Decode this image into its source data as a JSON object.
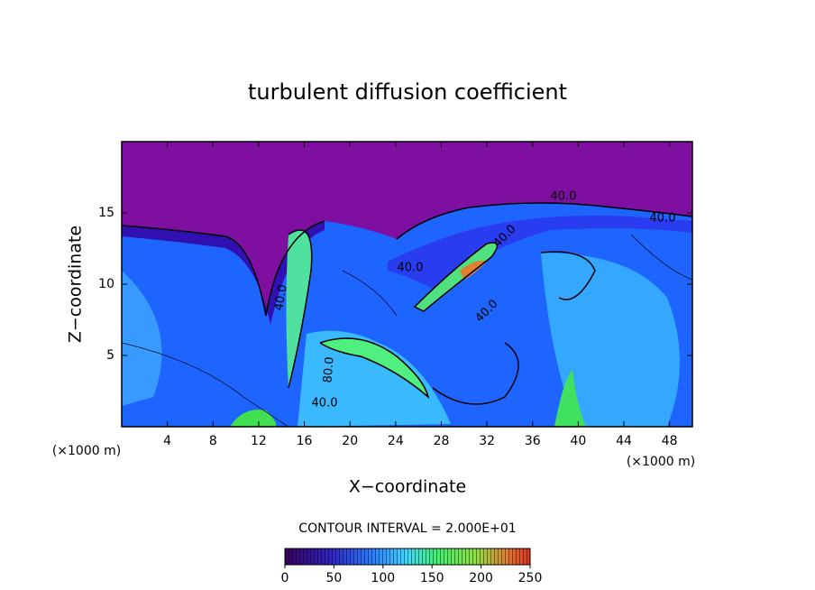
{
  "chart_data": {
    "type": "contour",
    "title": "turbulent diffusion coefficient",
    "x_label": "X−coordinate",
    "y_label": "Z−coordinate",
    "x_unit": "(×1000 m)",
    "y_unit": "(×1000 m)",
    "xlim": [
      0,
      50
    ],
    "ylim": [
      0,
      20
    ],
    "xticks": [
      4,
      8,
      12,
      16,
      20,
      24,
      28,
      32,
      36,
      40,
      44,
      48
    ],
    "yticks": [
      5,
      10,
      15
    ],
    "contour_interval_label": "CONTOUR INTERVAL = 2.000E+01",
    "colorbar": {
      "lim": [
        0,
        250
      ],
      "ticks": [
        0,
        50,
        100,
        150,
        200,
        250
      ]
    },
    "contour_labels": [
      "40.0",
      "40.0",
      "40.0",
      "40.0",
      "40.0",
      "80.0",
      "40.0",
      "40.0"
    ]
  }
}
